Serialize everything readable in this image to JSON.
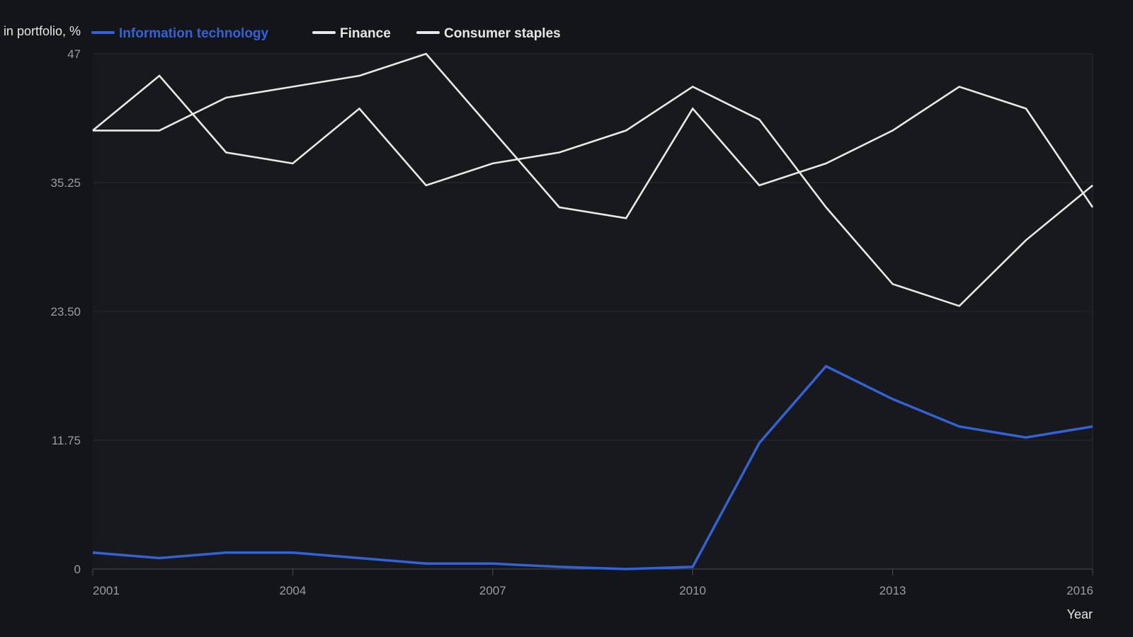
{
  "colors": {
    "page_background": "#131519",
    "plot_background": "#17191d",
    "grid": "#2a2c31",
    "axis_text": "#9a9ca2",
    "label_text": "#e6e6e6"
  },
  "chart_data": {
    "type": "line",
    "ylabel": "in portfolio, %",
    "xlabel": "Year",
    "x": [
      2001,
      2002,
      2003,
      2004,
      2005,
      2006,
      2007,
      2008,
      2009,
      2010,
      2011,
      2012,
      2013,
      2014,
      2015,
      2016
    ],
    "x_ticks": [
      "2001",
      "2004",
      "2007",
      "2010",
      "2013",
      "2016"
    ],
    "y_ticks": [
      "0",
      "11.75",
      "23.50",
      "35.25",
      "47"
    ],
    "xlim": [
      2001,
      2016
    ],
    "ylim": [
      0,
      47
    ],
    "grid": "horizontal",
    "legend_position": "top-left",
    "series": [
      {
        "name": "Information technology",
        "color": "#3462d6",
        "values": [
          1.5,
          1.0,
          1.5,
          1.5,
          1.0,
          0.5,
          0.5,
          0.2,
          0.0,
          0.2,
          11.5,
          18.5,
          15.5,
          13.0,
          12.0,
          13.0
        ]
      },
      {
        "name": "Finance",
        "color": "#e8e8e8",
        "values": [
          40,
          45,
          38,
          37,
          42,
          35,
          37,
          38,
          40,
          44,
          41,
          33,
          26,
          24,
          30,
          35
        ]
      },
      {
        "name": "Consumer staples",
        "color": "#e8e8e8",
        "values": [
          40,
          40,
          43,
          44,
          45,
          47,
          40,
          33,
          32,
          42,
          35,
          37,
          40,
          44,
          42,
          33
        ]
      }
    ]
  }
}
